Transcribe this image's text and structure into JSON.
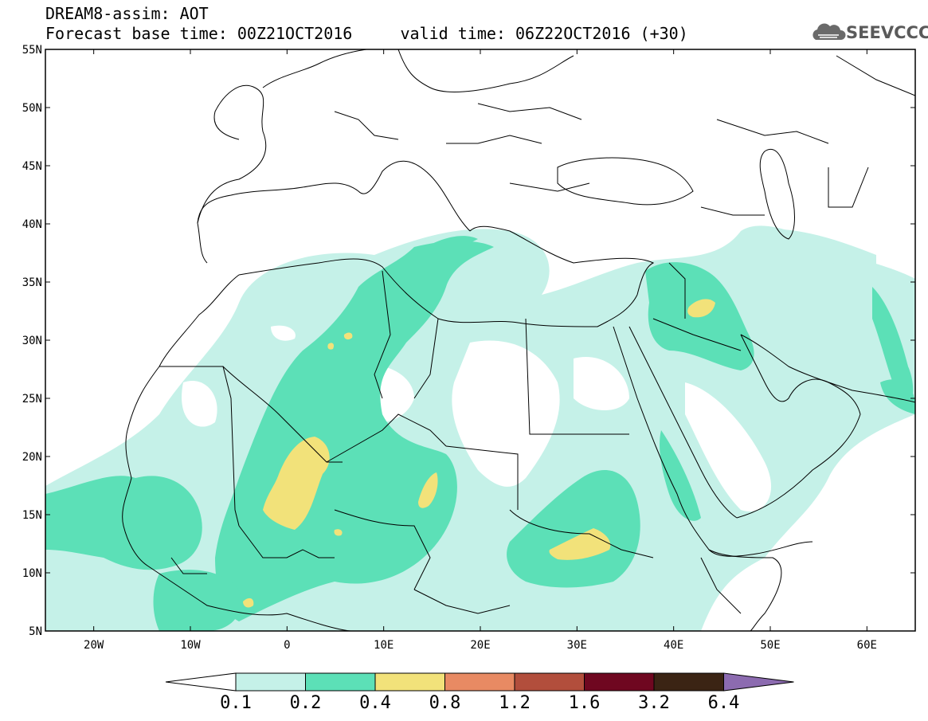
{
  "header": {
    "title_line_1": "DREAM8-assim: AOT",
    "title_line_2": "Forecast base time: 00Z21OCT2016     valid time: 06Z22OCT2016 (+30)",
    "logo_text": "SEEVCCC",
    "logo_icon": "cloud-logo-icon"
  },
  "map": {
    "projection": "lat-lon",
    "lon_range": [
      -25,
      65
    ],
    "lat_range": [
      5,
      55
    ],
    "lat_ticks": [
      "55N",
      "50N",
      "45N",
      "40N",
      "35N",
      "30N",
      "25N",
      "20N",
      "15N",
      "10N",
      "5N"
    ],
    "lon_ticks": [
      "20W",
      "10W",
      "0",
      "10E",
      "20E",
      "30E",
      "40E",
      "50E",
      "60E"
    ],
    "field": "AOT"
  },
  "colorbar": {
    "levels": [
      "0.1",
      "0.2",
      "0.4",
      "0.8",
      "1.2",
      "1.6",
      "3.2",
      "6.4"
    ],
    "colors": [
      "#ffffff",
      "#c5f1e8",
      "#5ce0b7",
      "#f2e27a",
      "#e88a63",
      "#b24e3c",
      "#6f0720",
      "#3b2414",
      "#8c6bb0"
    ]
  }
}
